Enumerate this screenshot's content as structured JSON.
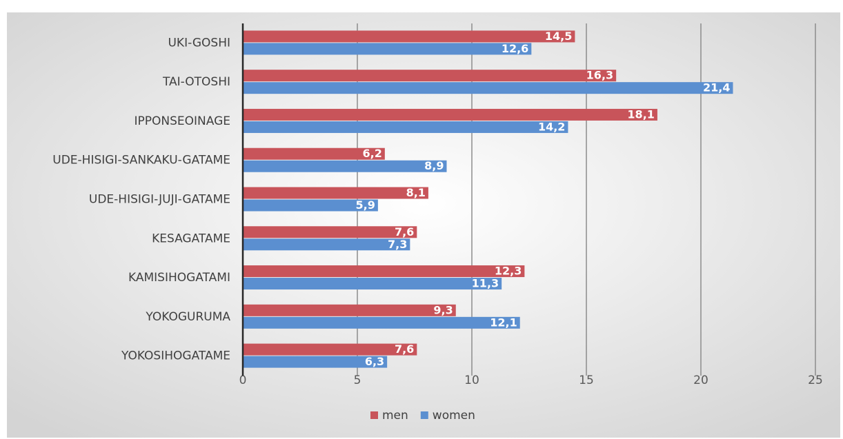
{
  "chart_data": {
    "type": "bar",
    "orientation": "horizontal",
    "categories": [
      "UKI-GOSHI",
      "TAI-OTOSHI",
      "IPPONSEOINAGE",
      "UDE-HISIGI-SANKAKU-GATAME",
      "UDE-HISIGI-JUJI-GATAME",
      "KESAGATAME",
      "KAMISIHOGATAMI",
      "YOKOGURUMA",
      "YOKOSIHOGATAME"
    ],
    "series": [
      {
        "name": "men",
        "color": "#c8545a",
        "values": [
          14.5,
          16.3,
          18.1,
          6.2,
          8.1,
          7.6,
          12.3,
          9.3,
          7.6
        ],
        "value_labels": [
          "14,5",
          "16,3",
          "18,1",
          "6,2",
          "8,1",
          "7,6",
          "12,3",
          "9,3",
          "7,6"
        ]
      },
      {
        "name": "women",
        "color": "#5b8fd0",
        "values": [
          12.6,
          21.4,
          14.2,
          8.9,
          5.9,
          7.3,
          11.3,
          12.1,
          6.3
        ],
        "value_labels": [
          "12,6",
          "21,4",
          "14,2",
          "8,9",
          "5,9",
          "7,3",
          "11,3",
          "12,1",
          "6,3"
        ]
      }
    ],
    "xlim": [
      0,
      25
    ],
    "xticks": [
      0,
      5,
      10,
      15,
      20,
      25
    ],
    "grid": true,
    "legend": "bottom"
  }
}
